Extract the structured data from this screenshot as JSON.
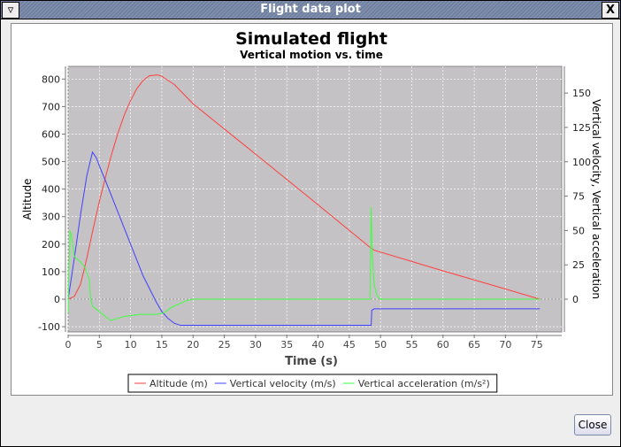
{
  "window": {
    "title": "Flight data plot",
    "close_button": "Close"
  },
  "chart_data": {
    "type": "line",
    "title": "Simulated flight",
    "subtitle": "Vertical motion vs. time",
    "xlabel": "Time (s)",
    "ylabel_left": "Altitude",
    "ylabel_right": "Vertical velocity, Vertical acceleration",
    "xlim": [
      0,
      79
    ],
    "ylim_left": [
      -119,
      846
    ],
    "ylim_right": [
      -23.8,
      169.4
    ],
    "xticks": [
      0,
      5,
      10,
      15,
      20,
      25,
      30,
      35,
      40,
      45,
      50,
      55,
      60,
      65,
      70,
      75
    ],
    "yticks_left": [
      -100,
      0,
      100,
      200,
      300,
      400,
      500,
      600,
      700,
      800
    ],
    "yticks_right": [
      0,
      25,
      50,
      75,
      100,
      125,
      150
    ],
    "grid": true,
    "legend": "bottom",
    "background": "#c4c2c4",
    "series": [
      {
        "name": "Altitude (m)",
        "axis": "left",
        "color": "#ff4040",
        "points": [
          [
            0,
            0
          ],
          [
            1,
            10
          ],
          [
            2,
            55
          ],
          [
            3,
            150
          ],
          [
            4,
            255
          ],
          [
            5,
            355
          ],
          [
            6,
            445
          ],
          [
            7,
            530
          ],
          [
            8,
            605
          ],
          [
            9,
            670
          ],
          [
            10,
            722
          ],
          [
            11,
            765
          ],
          [
            12,
            795
          ],
          [
            13,
            812
          ],
          [
            14.3,
            815
          ],
          [
            15,
            810
          ],
          [
            16,
            795
          ],
          [
            17,
            780
          ],
          [
            20,
            710
          ],
          [
            30,
            527
          ],
          [
            40,
            343
          ],
          [
            48.5,
            185
          ],
          [
            49,
            178
          ],
          [
            55,
            137
          ],
          [
            60,
            103
          ],
          [
            65,
            70
          ],
          [
            70,
            37
          ],
          [
            75.5,
            0
          ]
        ]
      },
      {
        "name": "Vertical velocity (m/s)",
        "axis": "right",
        "color": "#4040ff",
        "points": [
          [
            0,
            0
          ],
          [
            0.5,
            15
          ],
          [
            1,
            30
          ],
          [
            2,
            62
          ],
          [
            3,
            90
          ],
          [
            3.9,
            107
          ],
          [
            4.5,
            103
          ],
          [
            5,
            97
          ],
          [
            6,
            86
          ],
          [
            8,
            63
          ],
          [
            10,
            40
          ],
          [
            12,
            17
          ],
          [
            14.1,
            -2
          ],
          [
            15,
            -9
          ],
          [
            16,
            -14
          ],
          [
            17,
            -17.5
          ],
          [
            18,
            -19
          ],
          [
            48.5,
            -19
          ],
          [
            48.6,
            -8
          ],
          [
            49,
            -7
          ],
          [
            75.5,
            -7
          ]
        ]
      },
      {
        "name": "Vertical acceleration (m/s²)",
        "axis": "right",
        "color": "#40ff40",
        "points": [
          [
            0,
            -10
          ],
          [
            0.1,
            20
          ],
          [
            0.33,
            50
          ],
          [
            0.6,
            45
          ],
          [
            1,
            31
          ],
          [
            2,
            27
          ],
          [
            2.7,
            23
          ],
          [
            3.4,
            14
          ],
          [
            3.6,
            0
          ],
          [
            3.9,
            -5
          ],
          [
            6.8,
            -15.5
          ],
          [
            9,
            -12.5
          ],
          [
            11.5,
            -11
          ],
          [
            14.1,
            -11
          ],
          [
            15.3,
            -10
          ],
          [
            16.5,
            -6
          ],
          [
            17.7,
            -3.5
          ],
          [
            19,
            -1
          ],
          [
            20,
            0
          ],
          [
            48.3,
            0
          ],
          [
            48.5,
            67
          ],
          [
            48.7,
            30
          ],
          [
            49,
            10
          ],
          [
            49.5,
            2
          ],
          [
            50,
            0
          ],
          [
            75.5,
            0
          ]
        ]
      }
    ]
  }
}
